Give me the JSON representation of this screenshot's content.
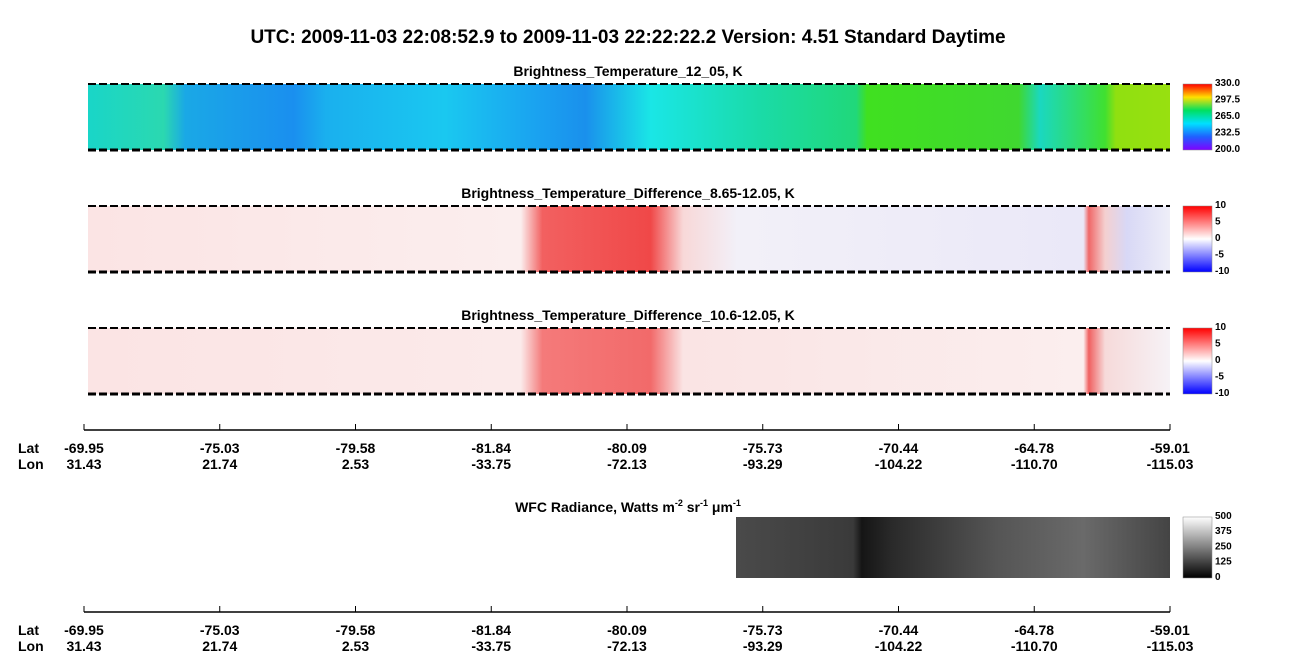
{
  "title": "UTC:  2009-11-03   22:08:52.9  to  2009-11-03   22:22:22.2    Version: 4.51  Standard Daytime",
  "panels": [
    {
      "title": "Brightness_Temperature_12_05, K",
      "colorbar_ticks": [
        "330.0",
        "297.5",
        "265.0",
        "232.5",
        "200.0"
      ]
    },
    {
      "title": "Brightness_Temperature_Difference_8.65-12.05, K",
      "colorbar_ticks": [
        "10",
        "5",
        "0",
        "-5",
        "-10"
      ]
    },
    {
      "title": "Brightness_Temperature_Difference_10.6-12.05, K",
      "colorbar_ticks": [
        "10",
        "5",
        "0",
        "-5",
        "-10"
      ]
    }
  ],
  "wfc": {
    "title_parts": [
      "WFC Radiance, Watts m",
      "-2",
      " sr",
      "-1",
      " μm",
      "-1"
    ],
    "colorbar_ticks": [
      "500",
      "375",
      "250",
      "125",
      "0"
    ]
  },
  "axes": [
    {
      "lat_label": "Lat",
      "lon_label": "Lon",
      "lat": [
        "-69.95",
        "-75.03",
        "-79.58",
        "-81.84",
        "-80.09",
        "-75.73",
        "-70.44",
        "-64.78",
        "-59.01"
      ],
      "lon": [
        "31.43",
        "21.74",
        "2.53",
        "-33.75",
        "-72.13",
        "-93.29",
        "-104.22",
        "-110.70",
        "-115.03"
      ]
    },
    {
      "lat_label": "Lat",
      "lon_label": "Lon",
      "lat": [
        "-69.95",
        "-75.03",
        "-79.58",
        "-81.84",
        "-80.09",
        "-75.73",
        "-70.44",
        "-64.78",
        "-59.01"
      ],
      "lon": [
        "31.43",
        "21.74",
        "2.53",
        "-33.75",
        "-72.13",
        "-93.29",
        "-104.22",
        "-110.70",
        "-115.03"
      ]
    }
  ]
}
